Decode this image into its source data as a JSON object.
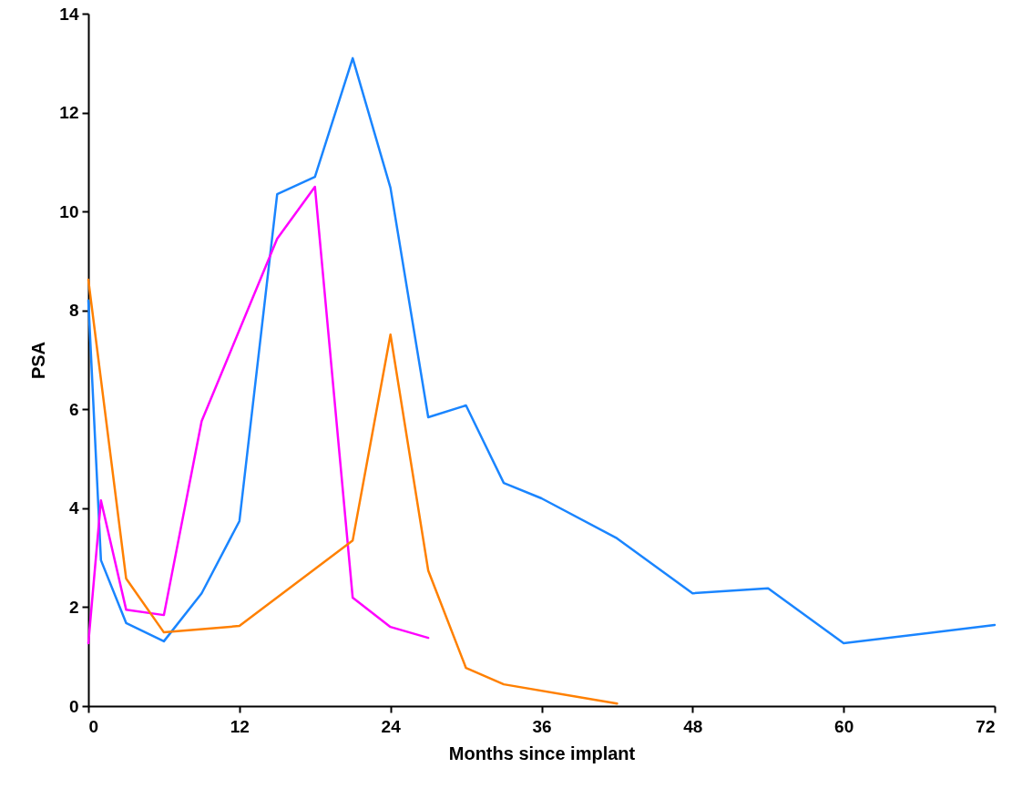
{
  "chart_data": {
    "type": "line",
    "xlabel": "Months since implant",
    "ylabel": "PSA",
    "xlim": [
      0,
      72
    ],
    "xticks": [
      0,
      12,
      24,
      36,
      48,
      60,
      72
    ],
    "ylim": [
      0,
      14
    ],
    "yticks": [
      0,
      2,
      4,
      6,
      8,
      10,
      12,
      14
    ],
    "grid": false,
    "series": [
      {
        "color": "#1a85ff",
        "x": [
          0,
          1,
          3,
          6,
          9,
          12,
          15,
          18,
          21,
          24,
          27,
          30,
          33,
          36,
          42,
          48,
          54,
          60,
          72
        ],
        "values": [
          8.2,
          2.95,
          1.68,
          1.31,
          2.28,
          3.74,
          10.35,
          10.7,
          13.1,
          10.48,
          5.84,
          6.08,
          4.51,
          4.2,
          3.39,
          2.28,
          2.38,
          1.27,
          1.64
        ]
      },
      {
        "color": "#ff00ff",
        "x": [
          0,
          1,
          3,
          6,
          9,
          15,
          18,
          21,
          24,
          27
        ],
        "values": [
          1.27,
          4.16,
          1.95,
          1.84,
          5.76,
          9.45,
          10.5,
          2.19,
          1.6,
          1.38
        ]
      },
      {
        "color": "#ff8000",
        "x": [
          0,
          3,
          6,
          12,
          21,
          24,
          27,
          30,
          33,
          42
        ],
        "values": [
          8.62,
          2.58,
          1.49,
          1.62,
          3.35,
          7.51,
          2.74,
          0.77,
          0.44,
          0.05
        ]
      }
    ]
  }
}
